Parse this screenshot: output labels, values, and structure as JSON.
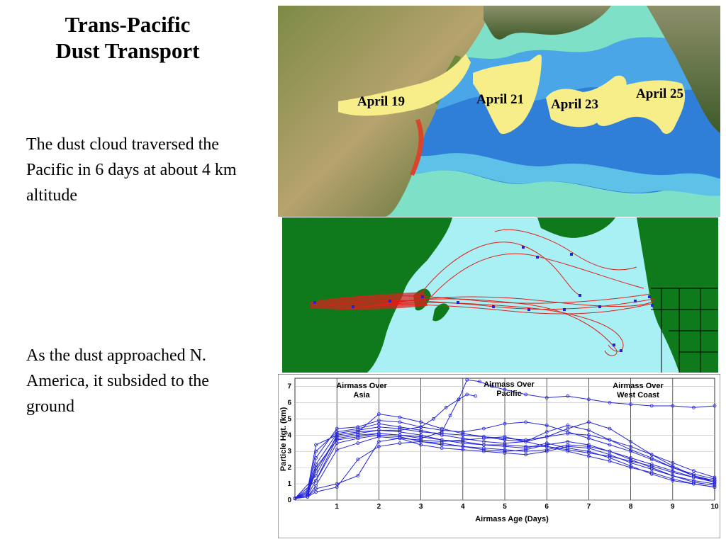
{
  "slide": {
    "title_line1": "Trans-Pacific",
    "title_line2": "Dust Transport",
    "paragraph1": "The dust cloud traversed the Pacific in 6 days at about 4 km altitude",
    "paragraph2": "As the dust approached N. America, it subsided to the ground"
  },
  "satellite_map": {
    "labels": [
      "April 19",
      "April 21",
      "April 23",
      "April 25"
    ],
    "colors": {
      "ocean_deep": "#2f7fd8",
      "ocean_mid": "#4aa6e6",
      "ocean_light": "#7fe0c8",
      "dust": "#f7ee8a"
    }
  },
  "trajectory_map": {
    "colors": {
      "land": "#0f7a1c",
      "ocean": "#a8f0f4",
      "track": "#e0201a",
      "marker": "#2323d8"
    }
  },
  "chart_data": {
    "type": "line",
    "xlabel": "Airmass Age (Days)",
    "ylabel": "Particle Hgt. (km)",
    "xlim": [
      0,
      10
    ],
    "ylim": [
      0,
      7.5
    ],
    "xticks": [
      1,
      2,
      3,
      4,
      5,
      6,
      7,
      8,
      9,
      10
    ],
    "yticks": [
      0,
      1,
      2,
      3,
      4,
      5,
      6,
      7
    ],
    "grid": true,
    "annotations": [
      "Airmass Over Asia",
      "Airmass Over Pacific",
      "Airmass Over West Coast"
    ],
    "color": "#2323d8",
    "series": [
      {
        "x": [
          0,
          0.3,
          0.5,
          1,
          1.5,
          2,
          2.5,
          3,
          3.5,
          4,
          4.5,
          5,
          5.5,
          6,
          6.5,
          7,
          7.5,
          8,
          8.5,
          9,
          9.5,
          10
        ],
        "y": [
          0.1,
          0.3,
          1.8,
          3.9,
          4.1,
          4.3,
          4.2,
          4.0,
          3.7,
          3.6,
          3.4,
          3.3,
          3.2,
          3.5,
          3.2,
          3.0,
          2.6,
          2.1,
          1.6,
          1.2,
          1.0,
          0.8
        ]
      },
      {
        "x": [
          0,
          0.3,
          0.5,
          1,
          1.5,
          2,
          2.5,
          3,
          3.5,
          4,
          4.5,
          5,
          5.5,
          6,
          6.5,
          7,
          7.5,
          8,
          8.5,
          9,
          9.5,
          10
        ],
        "y": [
          0.1,
          0.5,
          3.0,
          4.2,
          4.4,
          4.7,
          4.5,
          4.3,
          4.0,
          3.8,
          3.6,
          3.5,
          3.6,
          4.2,
          4.6,
          4.3,
          3.7,
          3.1,
          2.6,
          2.0,
          1.5,
          1.2
        ]
      },
      {
        "x": [
          0,
          0.3,
          0.5,
          1,
          1.5,
          2,
          2.5,
          3,
          3.5,
          4,
          4.5,
          5,
          5.5,
          6,
          6.5,
          7,
          7.5,
          8,
          8.5,
          9,
          9.5,
          10
        ],
        "y": [
          0.1,
          0.3,
          1.2,
          3.5,
          3.8,
          4.0,
          3.9,
          3.6,
          3.4,
          3.3,
          3.1,
          3.0,
          3.1,
          3.4,
          3.6,
          3.4,
          3.0,
          2.5,
          2.0,
          1.5,
          1.1,
          0.9
        ]
      },
      {
        "x": [
          0,
          0.3,
          0.5,
          1,
          1.5,
          2,
          2.5,
          3,
          3.5,
          4,
          4.5,
          5,
          5.5,
          6,
          6.5,
          7,
          7.5,
          8,
          8.5,
          9,
          9.5,
          10
        ],
        "y": [
          0.1,
          0.4,
          2.6,
          4.4,
          4.5,
          4.9,
          4.8,
          4.5,
          4.3,
          4.2,
          4.4,
          4.7,
          4.8,
          4.6,
          4.2,
          3.8,
          3.4,
          3.0,
          2.5,
          2.0,
          1.6,
          1.3
        ]
      },
      {
        "x": [
          0,
          0.3,
          0.5,
          1,
          1.5,
          2,
          2.5,
          3,
          3.5,
          4,
          4.5,
          5,
          5.5,
          6,
          6.5,
          7,
          7.5,
          8,
          8.5,
          9,
          9.5,
          10
        ],
        "y": [
          0.1,
          0.2,
          0.9,
          3.1,
          3.5,
          3.9,
          3.8,
          3.4,
          3.2,
          3.1,
          3.0,
          2.9,
          2.8,
          3.0,
          3.3,
          3.2,
          2.8,
          2.3,
          1.9,
          1.5,
          1.2,
          1.0
        ]
      },
      {
        "x": [
          0,
          0.3,
          0.5,
          1,
          1.5,
          2,
          2.5,
          3,
          3.5,
          4,
          4.5,
          5,
          5.5,
          6,
          6.5,
          7,
          7.5,
          8,
          8.5,
          9,
          9.5,
          10
        ],
        "y": [
          0.1,
          0.6,
          3.4,
          4.0,
          4.2,
          5.3,
          5.1,
          4.8,
          4.4,
          4.1,
          3.9,
          3.7,
          3.6,
          3.9,
          4.4,
          4.8,
          4.4,
          3.6,
          2.8,
          2.1,
          1.5,
          1.1
        ]
      },
      {
        "x": [
          0,
          0.3,
          0.5,
          1,
          1.5,
          2,
          2.5,
          3,
          3.5,
          4,
          4.5,
          5,
          5.5,
          6,
          6.5,
          7,
          7.5,
          8,
          8.5,
          9,
          9.5,
          10
        ],
        "y": [
          0.1,
          0.3,
          2.0,
          3.7,
          3.9,
          4.1,
          4.0,
          3.9,
          3.7,
          3.5,
          3.4,
          3.4,
          3.3,
          3.3,
          3.1,
          2.9,
          2.7,
          2.4,
          2.1,
          1.7,
          1.4,
          1.2
        ]
      },
      {
        "x": [
          0,
          0.3,
          0.5,
          1,
          1.5,
          2,
          2.5,
          3,
          3.5,
          4,
          4.5,
          5,
          5.5,
          6,
          6.5,
          7,
          7.5,
          8,
          8.5,
          9,
          9.5,
          10
        ],
        "y": [
          0.1,
          0.2,
          0.7,
          1.0,
          1.5,
          3.6,
          3.8,
          3.7,
          3.6,
          3.7,
          3.8,
          3.9,
          3.6,
          3.3,
          3.0,
          2.7,
          2.4,
          2.0,
          1.7,
          1.3,
          1.0,
          0.8
        ]
      },
      {
        "x": [
          0,
          0.3,
          0.5,
          1,
          1.5,
          2,
          2.5,
          3,
          3.5,
          4,
          4.5,
          5,
          5.5,
          6,
          6.5,
          7,
          7.5,
          8,
          8.5,
          9,
          9.5,
          10
        ],
        "y": [
          0.1,
          0.4,
          2.2,
          4.1,
          4.3,
          4.5,
          4.4,
          4.2,
          4.1,
          4.0,
          3.9,
          3.8,
          3.7,
          3.9,
          4.1,
          4.0,
          3.7,
          3.3,
          2.8,
          2.3,
          1.8,
          1.4
        ]
      },
      {
        "x": [
          0,
          0.3,
          0.5,
          1,
          1.5,
          2,
          2.5,
          3,
          3.5,
          4,
          4.5,
          5,
          5.5,
          6,
          6.5,
          7,
          7.5,
          8,
          8.5,
          9,
          9.5,
          10
        ],
        "y": [
          0.1,
          0.2,
          0.5,
          0.8,
          2.5,
          3.3,
          3.5,
          3.6,
          3.5,
          3.3,
          3.2,
          3.1,
          3.0,
          3.1,
          3.4,
          3.3,
          3.0,
          2.6,
          2.2,
          1.8,
          1.4,
          1.1
        ]
      },
      {
        "x": [
          0,
          0.5,
          1,
          1.5,
          2,
          2.5,
          3,
          3.3,
          3.6,
          3.9,
          4.1,
          4.4,
          4.7,
          5.0,
          5.5,
          6,
          6.5,
          7,
          7.5,
          8,
          8.5,
          9,
          9.5,
          10
        ],
        "y": [
          0.1,
          1.5,
          4.0,
          4.2,
          4.3,
          4.3,
          4.5,
          5.0,
          5.7,
          6.2,
          7.4,
          7.3,
          7.0,
          6.8,
          6.5,
          6.3,
          6.4,
          6.2,
          6.0,
          5.9,
          5.8,
          5.8,
          5.7,
          5.8
        ]
      },
      {
        "x": [
          0,
          0.5,
          1,
          1.5,
          2,
          2.5,
          3,
          3.5,
          3.7,
          3.9,
          4.1,
          4.3
        ],
        "y": [
          0.1,
          1.2,
          3.8,
          4.0,
          4.1,
          4.0,
          3.8,
          4.2,
          5.2,
          6.2,
          6.5,
          6.4
        ]
      }
    ]
  }
}
